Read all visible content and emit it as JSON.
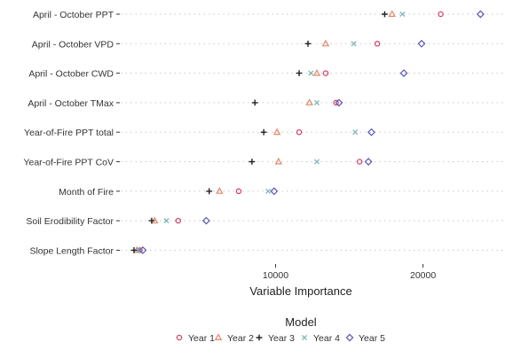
{
  "chart_data": {
    "type": "scatter",
    "title": "",
    "xlabel": "Variable Importance",
    "ylabel": "",
    "xlim": [
      -500,
      25500
    ],
    "x_ticks": [
      10000,
      20000
    ],
    "x_tick_labels": [
      "10000",
      "20000"
    ],
    "grid": "horizontal dotted",
    "legend": {
      "title": "Model",
      "placement": "bottom"
    },
    "categories": [
      "April - October PPT",
      "April - October VPD",
      "April - October CWD",
      "April - October TMax",
      "Year-of-Fire PPT total",
      "Year-of-Fire PPT CoV",
      "Month of Fire",
      "Soil Erodibility Factor",
      "Slope Length Factor"
    ],
    "series": [
      {
        "name": "Year 1",
        "marker": "circle",
        "color": "#d2476b",
        "values": [
          21200,
          16900,
          13400,
          14100,
          11600,
          15700,
          7500,
          3400,
          800
        ]
      },
      {
        "name": "Year 2",
        "marker": "triangle",
        "color": "#e0896a",
        "values": [
          17900,
          13400,
          12800,
          12300,
          10100,
          10200,
          6200,
          1800,
          600
        ]
      },
      {
        "name": "Year 3",
        "marker": "plus",
        "color": "#222222",
        "values": [
          17400,
          12200,
          11600,
          8600,
          9200,
          8400,
          5500,
          1600,
          400
        ]
      },
      {
        "name": "Year 4",
        "marker": "cross",
        "color": "#79b8b4",
        "values": [
          18600,
          15300,
          12400,
          12800,
          15400,
          12800,
          9500,
          2600,
          700
        ]
      },
      {
        "name": "Year 5",
        "marker": "diamond",
        "color": "#5b55b8",
        "values": [
          23900,
          19900,
          18700,
          14300,
          16500,
          16300,
          9900,
          5300,
          1000
        ]
      }
    ]
  }
}
